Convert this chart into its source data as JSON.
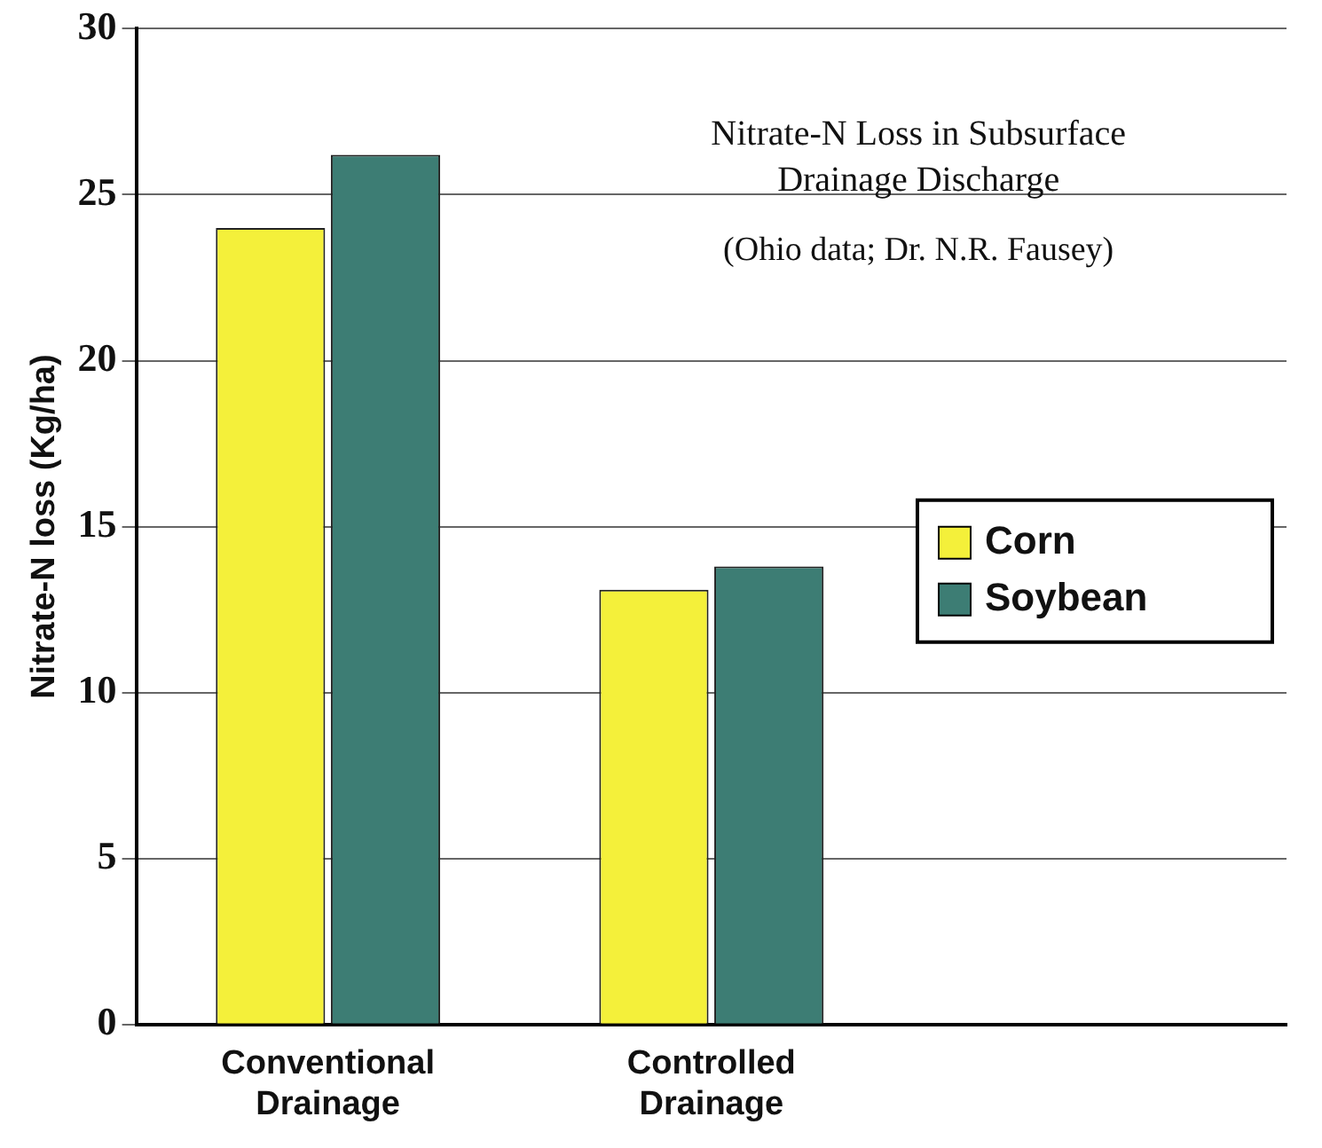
{
  "chart_data": {
    "type": "bar",
    "title": "Nitrate-N Loss in Subsurface Drainage Discharge",
    "subtitle": "(Ohio data; Dr. N.R. Fausey)",
    "ylabel": "Nitrate-N loss (Kg/ha)",
    "categories": [
      "Conventional Drainage",
      "Controlled Drainage",
      null
    ],
    "series": [
      {
        "name": "Corn",
        "color": "#f4f03a",
        "values": [
          24,
          13.1,
          null
        ]
      },
      {
        "name": "Soybean",
        "color": "#3d7d74",
        "values": [
          26.2,
          13.8,
          null
        ]
      }
    ],
    "ylim": [
      0,
      30
    ],
    "yticks": [
      0,
      5,
      10,
      15,
      20,
      25,
      30
    ],
    "grid": "y",
    "legend": "right"
  }
}
